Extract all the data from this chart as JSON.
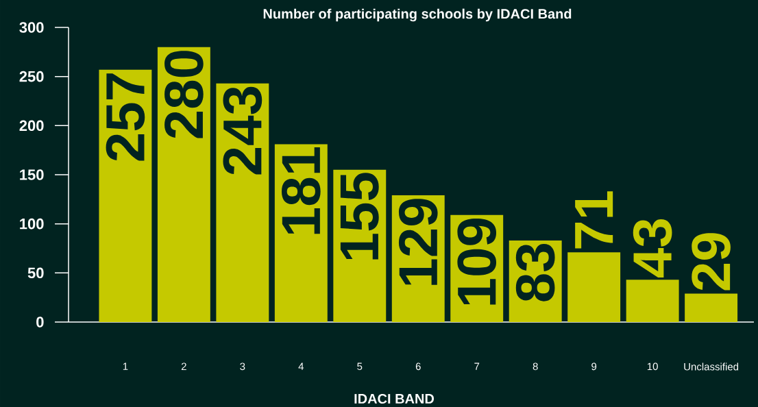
{
  "chart_data": {
    "type": "bar",
    "title": "Number of participating schools by IDACI Band",
    "xlabel": "IDACI BAND",
    "categories": [
      "1",
      "2",
      "3",
      "4",
      "5",
      "6",
      "7",
      "8",
      "9",
      "10",
      "Unclassified"
    ],
    "values": [
      257,
      280,
      243,
      181,
      155,
      129,
      109,
      83,
      71,
      43,
      29
    ],
    "color": "#c5c900",
    "ylim": [
      0,
      300
    ],
    "yticks": [
      0,
      50,
      100,
      150,
      200,
      250,
      300
    ],
    "data_labels": true
  }
}
